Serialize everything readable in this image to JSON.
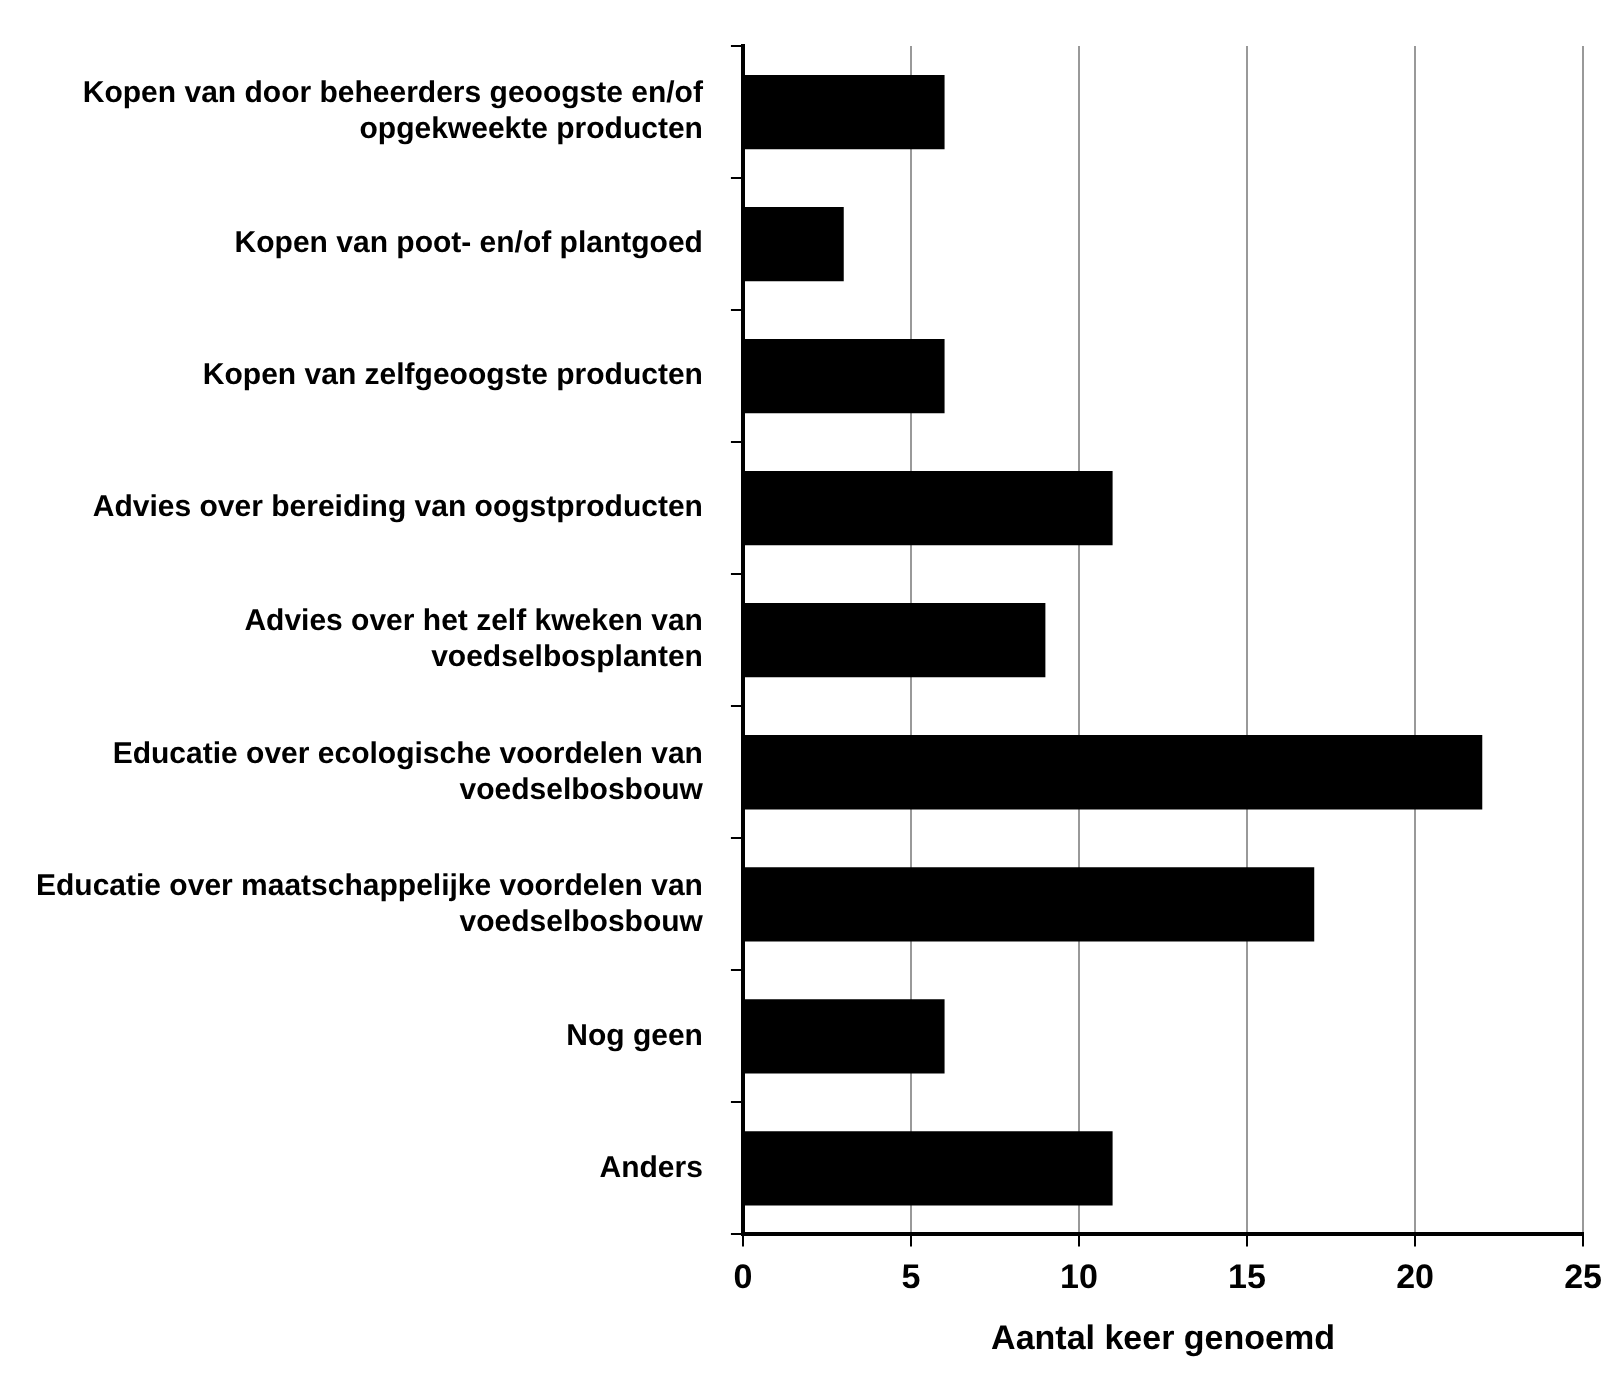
{
  "chart_data": {
    "type": "bar",
    "orientation": "horizontal",
    "xlabel": "Aantal keer genoemd",
    "categories": [
      "Kopen van door beheerders geoogste en/of opgekweekte producten",
      "Kopen van poot- en/of plantgoed",
      "Kopen van zelfgeoogste producten",
      "Advies over bereiding van oogstproducten",
      "Advies over het zelf kweken van voedselbosplanten",
      "Educatie over ecologische voordelen van voedselbosbouw",
      "Educatie over maatschappelijke voordelen van voedselbosbouw",
      "Nog geen",
      "Anders"
    ],
    "values": [
      6,
      3,
      6,
      11,
      9,
      22,
      17,
      6,
      11
    ],
    "color": "#000000",
    "xlim": [
      0,
      25
    ],
    "xticks": [
      0,
      5,
      10,
      15,
      20,
      25
    ],
    "grid": "x",
    "legend": false
  }
}
